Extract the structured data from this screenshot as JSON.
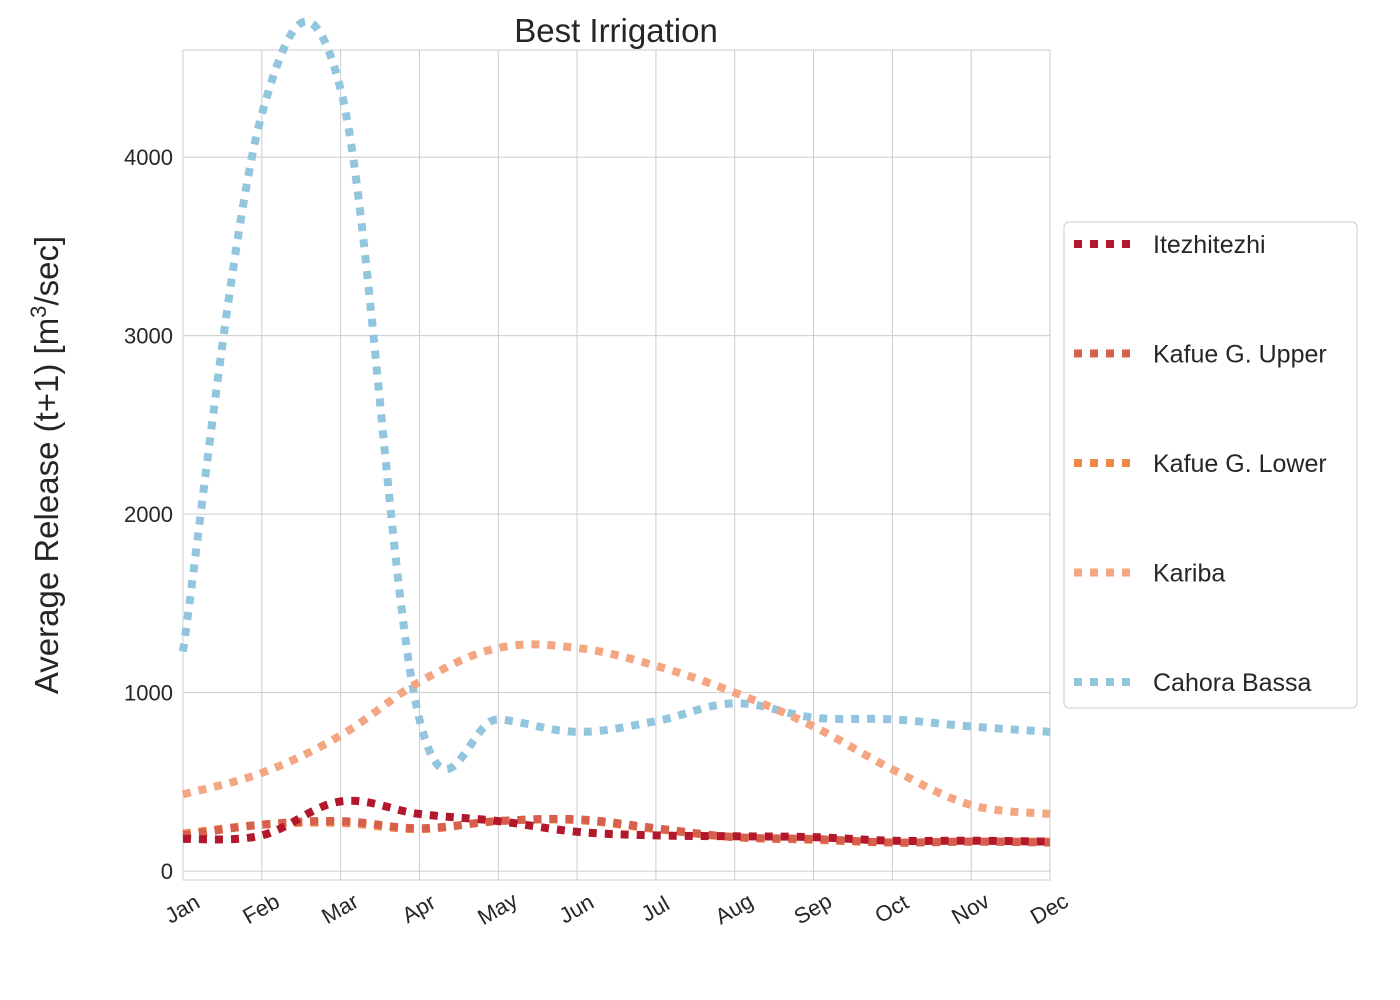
{
  "chart_data": {
    "type": "line",
    "title": "Best Irrigation",
    "ylabel_main": "Average Release (t+1) [m",
    "ylabel_sup": "3",
    "ylabel_tail": "/sec]",
    "xlabel": "",
    "categories": [
      "Jan",
      "Feb",
      "Mar",
      "Apr",
      "May",
      "Jun",
      "Jul",
      "Aug",
      "Sep",
      "Oct",
      "Nov",
      "Dec"
    ],
    "ylim": [
      -50,
      4600
    ],
    "yticks": [
      0,
      1000,
      2000,
      3000,
      4000
    ],
    "grid": true,
    "legend_position": "right",
    "series": [
      {
        "name": "Itezhitezhi",
        "color": "#b2182b",
        "values": [
          180,
          200,
          390,
          320,
          280,
          220,
          200,
          195,
          190,
          170,
          170,
          165
        ]
      },
      {
        "name": "Kafue G. Upper",
        "color": "#d6604d",
        "values": [
          200,
          260,
          280,
          240,
          280,
          290,
          240,
          190,
          180,
          160,
          165,
          160
        ]
      },
      {
        "name": "Kafue G. Lower",
        "color": "#f4a582",
        "values": [
          210,
          260,
          270,
          235,
          280,
          285,
          235,
          190,
          175,
          160,
          165,
          165
        ],
        "legend_color": "#f4874b",
        "line_color": "#f4874b"
      },
      {
        "name": "Kariba",
        "color": "#f4a582",
        "values": [
          430,
          550,
          760,
          1060,
          1250,
          1250,
          1150,
          1000,
          810,
          570,
          370,
          320
        ]
      },
      {
        "name": "Cahora Bassa",
        "color": "#92c5de",
        "values": [
          1230,
          4240,
          4380,
          850,
          850,
          780,
          840,
          940,
          860,
          850,
          810,
          780
        ]
      }
    ]
  }
}
